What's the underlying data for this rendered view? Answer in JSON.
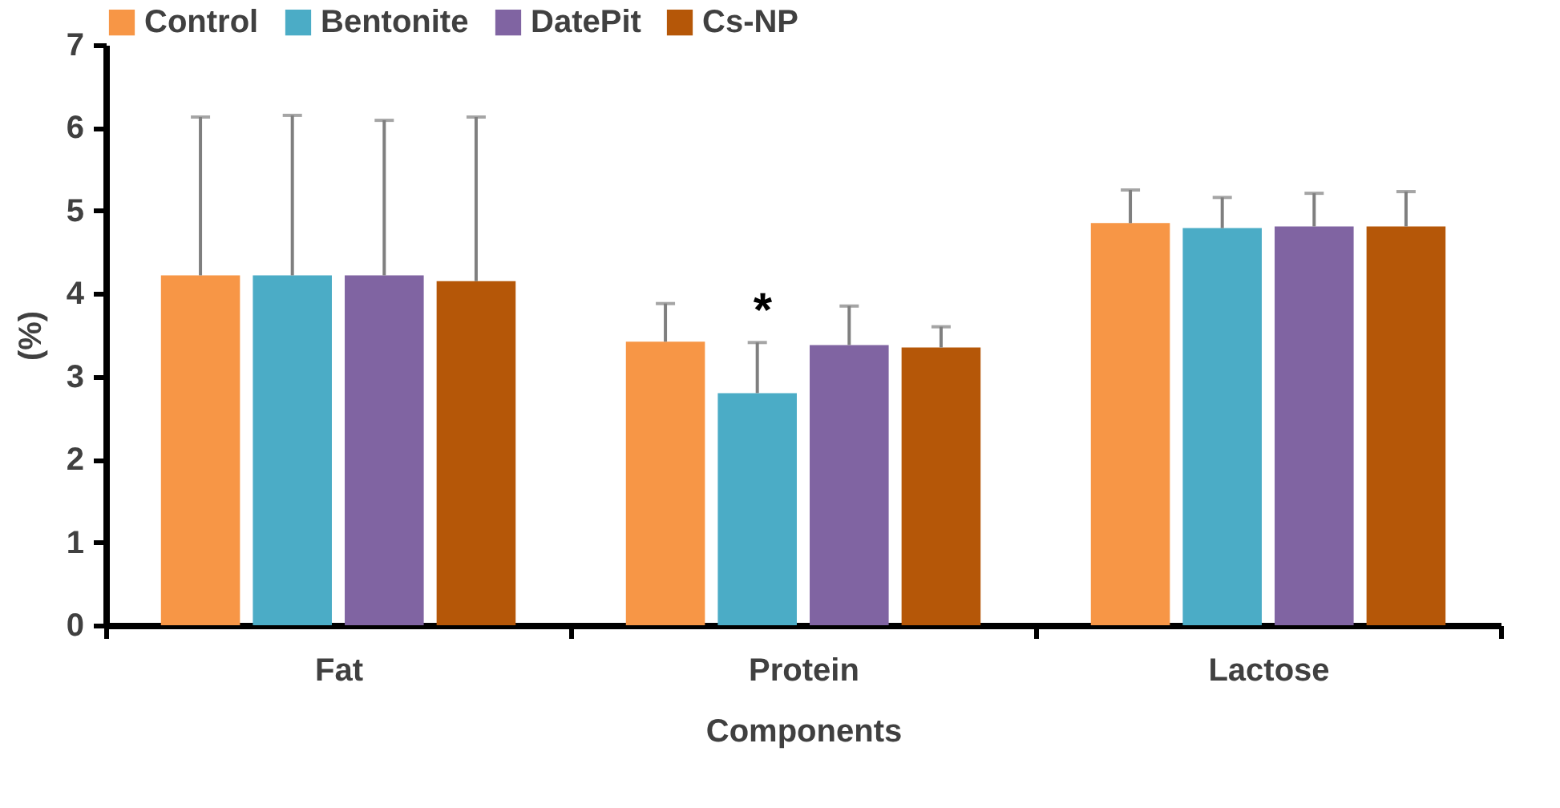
{
  "chart_data": {
    "type": "bar",
    "xlabel": "Components",
    "ylabel": "(%)",
    "categories": [
      "Fat",
      "Protein",
      "Lactose"
    ],
    "series": [
      {
        "name": "Control",
        "color": "#f79646",
        "values": [
          4.22,
          3.42,
          4.85
        ],
        "errors": [
          [
            4.22,
            6.13
          ],
          [
            3.42,
            3.88
          ],
          [
            4.85,
            5.25
          ]
        ]
      },
      {
        "name": "Bentonite",
        "color": "#4bacc6",
        "values": [
          4.22,
          2.8,
          4.79
        ],
        "errors": [
          [
            4.22,
            6.15
          ],
          [
            2.8,
            3.41
          ],
          [
            4.79,
            5.16
          ]
        ]
      },
      {
        "name": "DatePit",
        "color": "#8064a2",
        "values": [
          4.22,
          3.38,
          4.81
        ],
        "errors": [
          [
            4.22,
            6.09
          ],
          [
            3.38,
            3.85
          ],
          [
            4.81,
            5.21
          ]
        ]
      },
      {
        "name": "Cs-NP",
        "color": "#b55708",
        "values": [
          4.15,
          3.35,
          4.81
        ],
        "errors": [
          [
            4.15,
            6.13
          ],
          [
            3.35,
            3.6
          ],
          [
            4.81,
            5.23
          ]
        ]
      }
    ],
    "ylim": [
      0,
      7
    ],
    "yticks": [
      0,
      1,
      2,
      3,
      4,
      5,
      6,
      7
    ],
    "grid": false,
    "legend": "top",
    "annotations": [
      "*"
    ]
  }
}
